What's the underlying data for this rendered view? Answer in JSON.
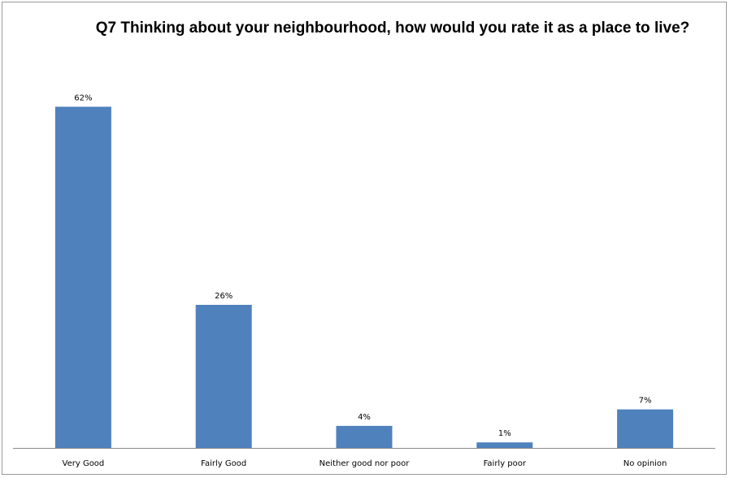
{
  "chart_data": {
    "type": "bar",
    "title": "Q7 Thinking about your neighbourhood, how would you rate it as a place to live?",
    "categories": [
      "Very Good",
      "Fairly Good",
      "Neither good nor poor",
      "Fairly poor",
      "No opinion"
    ],
    "values": [
      62,
      26,
      4,
      1,
      7
    ],
    "data_labels": [
      "62%",
      "26%",
      "4%",
      "1%",
      "7%"
    ],
    "unit": "%",
    "xlabel": "",
    "ylabel": "",
    "ylim": [
      0,
      65
    ],
    "grid": false,
    "legend": "none",
    "bar_color": "#4F81BD",
    "axis_color": "#8c8c8c"
  }
}
